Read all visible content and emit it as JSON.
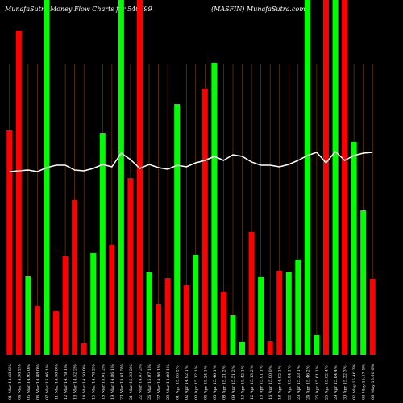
{
  "chart_data": {
    "type": "bar",
    "title": "MunafaSutra  Money Flow  Charts for 540799",
    "subtitle": "(MASFIN) MunafaSutra.com",
    "categories": [
      "01 Mar 14.68 6%",
      "04 Mar 14.98 2%",
      "05 Mar 14.95 0%",
      "06 Mar 14.88 0%",
      "07 Mar 15.06 1%",
      "11 Mar 14.98 0%",
      "12 Mar 14.78 1%",
      "13 Mar 14.52 2%",
      "14 Mar 14.50 0%",
      "15 Mar 14.78 2%",
      "18 Mar 15.01 2%",
      "19 Mar 14.86 1%",
      "20 Mar 15.61 5%",
      "21 Mar 15.23 2%",
      "22 Mar 14.87 2%",
      "26 Mar 15.07 1%",
      "27 Mar 14.96 1%",
      "28 Mar 14.80 1%",
      "01 Apr 15.06 2%",
      "02 Apr 14.92 1%",
      "03 Apr 15.12 1%",
      "04 Apr 15.24 1%",
      "05 Apr 15.46 1%",
      "08 Apr 15.21 2%",
      "09 Apr 15.51 2%",
      "10 Apr 15.42 1%",
      "12 Apr 15.13 2%",
      "15 Apr 15.01 1%",
      "16 Apr 15.00 0%",
      "18 Apr 14.92 1%",
      "22 Apr 15.04 1%",
      "23 Apr 15.23 1%",
      "24 Apr 15.46 2%",
      "25 Apr 15.61 1%",
      "26 Apr 15.02 4%",
      "29 Apr 15.64 4%",
      "30 Apr 15.22 3%",
      "02 May 15.46 2%",
      "03 May 15.57 1%",
      "06 May 15.60 0%"
    ],
    "values": [
      279,
      402,
      97,
      60,
      440,
      54,
      122,
      192,
      14,
      126,
      275,
      136,
      440,
      219,
      440,
      102,
      63,
      95,
      311,
      86,
      124,
      330,
      362,
      78,
      49,
      16,
      152,
      96,
      17,
      104,
      103,
      118,
      440,
      24,
      440,
      440,
      440,
      264,
      179,
      94
    ],
    "colors": [
      "#ff0000",
      "#ff0000",
      "#00ff00",
      "#ff0000",
      "#00ff00",
      "#ff0000",
      "#ff0000",
      "#ff0000",
      "#ff0000",
      "#00ff00",
      "#00ff00",
      "#ff0000",
      "#00ff00",
      "#ff0000",
      "#ff0000",
      "#00ff00",
      "#ff0000",
      "#ff0000",
      "#00ff00",
      "#ff0000",
      "#00ff00",
      "#ff0000",
      "#00ff00",
      "#ff0000",
      "#00ff00",
      "#00ff00",
      "#ff0000",
      "#00ff00",
      "#ff0000",
      "#ff0000",
      "#00ff00",
      "#00ff00",
      "#00ff00",
      "#00ff00",
      "#ff0000",
      "#00ff00",
      "#ff0000",
      "#00ff00",
      "#00ff00",
      "#ff0000"
    ],
    "line_values": [
      227,
      228,
      229,
      227,
      232,
      235,
      235,
      229,
      228,
      231,
      236,
      233,
      250,
      242,
      231,
      236,
      232,
      230,
      235,
      233,
      238,
      241,
      246,
      241,
      248,
      246,
      239,
      235,
      235,
      233,
      236,
      241,
      247,
      251,
      238,
      252,
      241,
      247,
      250,
      251
    ],
    "line_color": "#ffffff",
    "ylim": [
      0,
      440
    ]
  }
}
